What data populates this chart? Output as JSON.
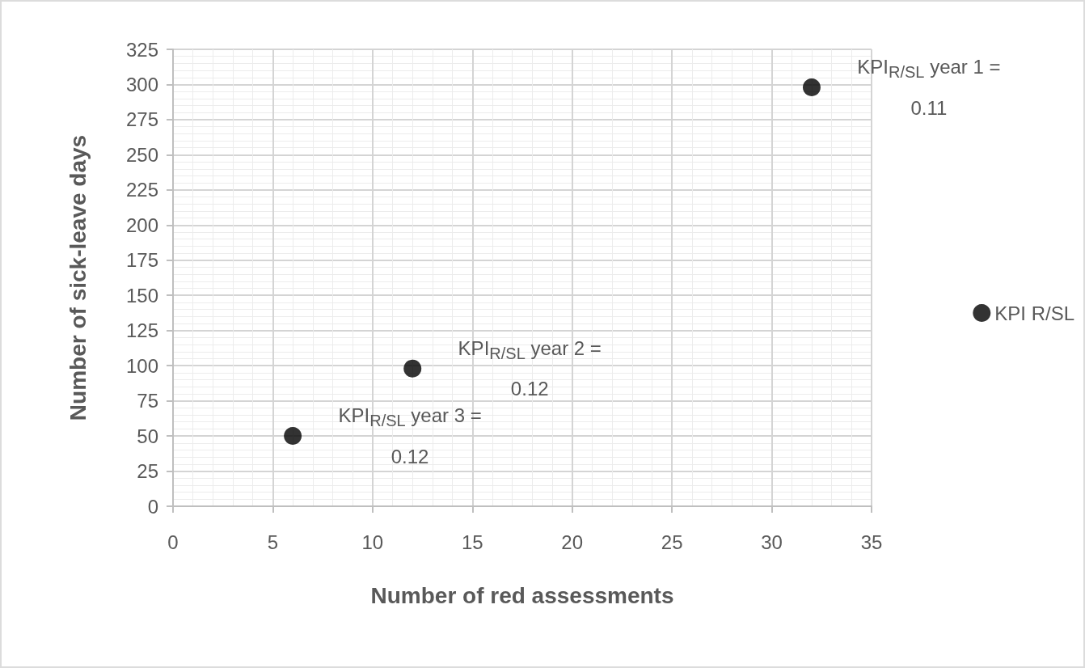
{
  "chart_data": {
    "type": "scatter",
    "xlabel": "Number of red assessments",
    "ylabel": "Number of sick-leave days",
    "series": [
      {
        "name": "KPI R/SL",
        "color": "#000000",
        "x": [
          6,
          12,
          32
        ],
        "values": [
          50,
          98,
          298
        ]
      }
    ],
    "xlim": [
      0,
      35
    ],
    "xticks": [
      0,
      5,
      10,
      15,
      20,
      25,
      30,
      35
    ],
    "ylim": [
      0,
      325
    ],
    "yticks": [
      0,
      25,
      50,
      75,
      100,
      125,
      150,
      175,
      200,
      225,
      250,
      275,
      300,
      325
    ],
    "grid": true,
    "legend": "right",
    "marker": "circle",
    "annotations": [
      {
        "text": "KPI$_{R/SL}$ year 1 = 0.11",
        "x": 32,
        "y": 298
      },
      {
        "text": "KPI$_{R/SL}$ year 2 = 0.12",
        "x": 12,
        "y": 98
      },
      {
        "text": "KPI$_{R/SL}$ year 3 = 0.12",
        "x": 6,
        "y": 50
      }
    ]
  }
}
